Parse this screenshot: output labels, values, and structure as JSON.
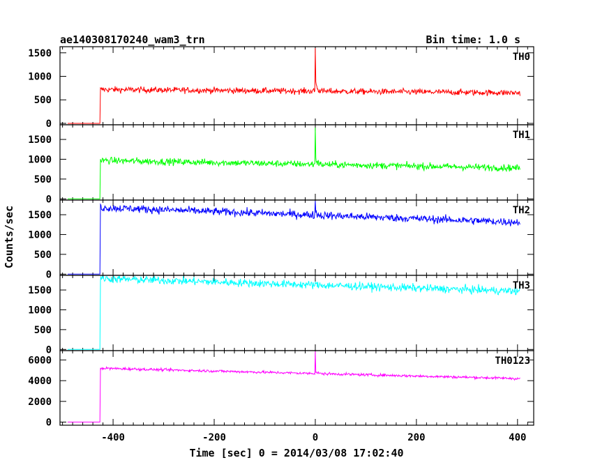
{
  "chart_data": {
    "type": "line",
    "title": "ae140308170240_wam3_trn",
    "subtitle": "Bin time: 1.0 s",
    "xlabel": "Time [sec] 0 = 2014/03/08 17:02:40",
    "ylabel": "Counts/sec",
    "xlim": [
      -505,
      432
    ],
    "x_ticks": [
      -400,
      -200,
      0,
      200,
      400
    ],
    "grid": false,
    "panels": [
      {
        "name": "TH0",
        "color": "#ff0000",
        "ylim": [
          -30,
          1630
        ],
        "y_ticks": [
          0,
          500,
          1000,
          1500
        ],
        "pre_level": 0,
        "step_time": -425,
        "step_level": 720,
        "end_level": 650,
        "noise": 45,
        "peak_time": 0,
        "peak_value": 1600,
        "tail_value": 930,
        "key_points": [
          [
            -490,
            0
          ],
          [
            -426,
            0
          ],
          [
            -424,
            720
          ],
          [
            -300,
            705
          ],
          [
            -100,
            680
          ],
          [
            -5,
            690
          ],
          [
            0,
            1600
          ],
          [
            5,
            780
          ],
          [
            100,
            660
          ],
          [
            200,
            650
          ],
          [
            405,
            640
          ]
        ]
      },
      {
        "name": "TH1",
        "color": "#00ff00",
        "ylim": [
          -30,
          1870
        ],
        "y_ticks": [
          0,
          500,
          1000,
          1500
        ],
        "pre_level": 0,
        "step_time": -425,
        "step_level": 970,
        "end_level": 780,
        "noise": 60,
        "peak_time": 0,
        "peak_value": 1800,
        "tail_value": 1050,
        "key_points": [
          [
            -490,
            0
          ],
          [
            -426,
            0
          ],
          [
            -424,
            970
          ],
          [
            -300,
            940
          ],
          [
            -100,
            880
          ],
          [
            -5,
            880
          ],
          [
            0,
            1800
          ],
          [
            5,
            930
          ],
          [
            100,
            830
          ],
          [
            200,
            810
          ],
          [
            405,
            780
          ]
        ]
      },
      {
        "name": "TH2",
        "color": "#0000ff",
        "ylim": [
          -30,
          1870
        ],
        "y_ticks": [
          0,
          500,
          1000,
          1500
        ],
        "pre_level": 0,
        "step_time": -425,
        "step_level": 1680,
        "end_level": 1310,
        "noise": 70,
        "peak_time": 0,
        "peak_value": 1850,
        "tail_value": 1620,
        "key_points": [
          [
            -490,
            0
          ],
          [
            -426,
            0
          ],
          [
            -424,
            1680
          ],
          [
            -300,
            1630
          ],
          [
            -100,
            1530
          ],
          [
            -5,
            1500
          ],
          [
            0,
            1850
          ],
          [
            5,
            1560
          ],
          [
            100,
            1450
          ],
          [
            200,
            1390
          ],
          [
            405,
            1310
          ]
        ]
      },
      {
        "name": "TH3",
        "color": "#00ffff",
        "ylim": [
          -30,
          1870
        ],
        "y_ticks": [
          0,
          500,
          1000,
          1500
        ],
        "pre_level": 0,
        "step_time": -425,
        "step_level": 1790,
        "end_level": 1470,
        "noise": 70,
        "peak_time": null,
        "peak_value": null,
        "tail_value": null,
        "key_points": [
          [
            -490,
            0
          ],
          [
            -426,
            0
          ],
          [
            -424,
            1790
          ],
          [
            -300,
            1720
          ],
          [
            -100,
            1650
          ],
          [
            0,
            1610
          ],
          [
            100,
            1570
          ],
          [
            200,
            1540
          ],
          [
            405,
            1470
          ]
        ]
      },
      {
        "name": "TH0123",
        "color": "#ff00ff",
        "ylim": [
          -300,
          6900
        ],
        "y_ticks": [
          0,
          2000,
          4000,
          6000
        ],
        "pre_level": 0,
        "step_time": -425,
        "step_level": 5200,
        "end_level": 4200,
        "noise": 90,
        "peak_time": 0,
        "peak_value": 6900,
        "tail_value": 5000,
        "key_points": [
          [
            -490,
            0
          ],
          [
            -426,
            0
          ],
          [
            -424,
            5200
          ],
          [
            -300,
            5000
          ],
          [
            -100,
            4750
          ],
          [
            -5,
            4650
          ],
          [
            0,
            6900
          ],
          [
            5,
            4900
          ],
          [
            100,
            4500
          ],
          [
            200,
            4380
          ],
          [
            405,
            4200
          ]
        ]
      }
    ]
  }
}
